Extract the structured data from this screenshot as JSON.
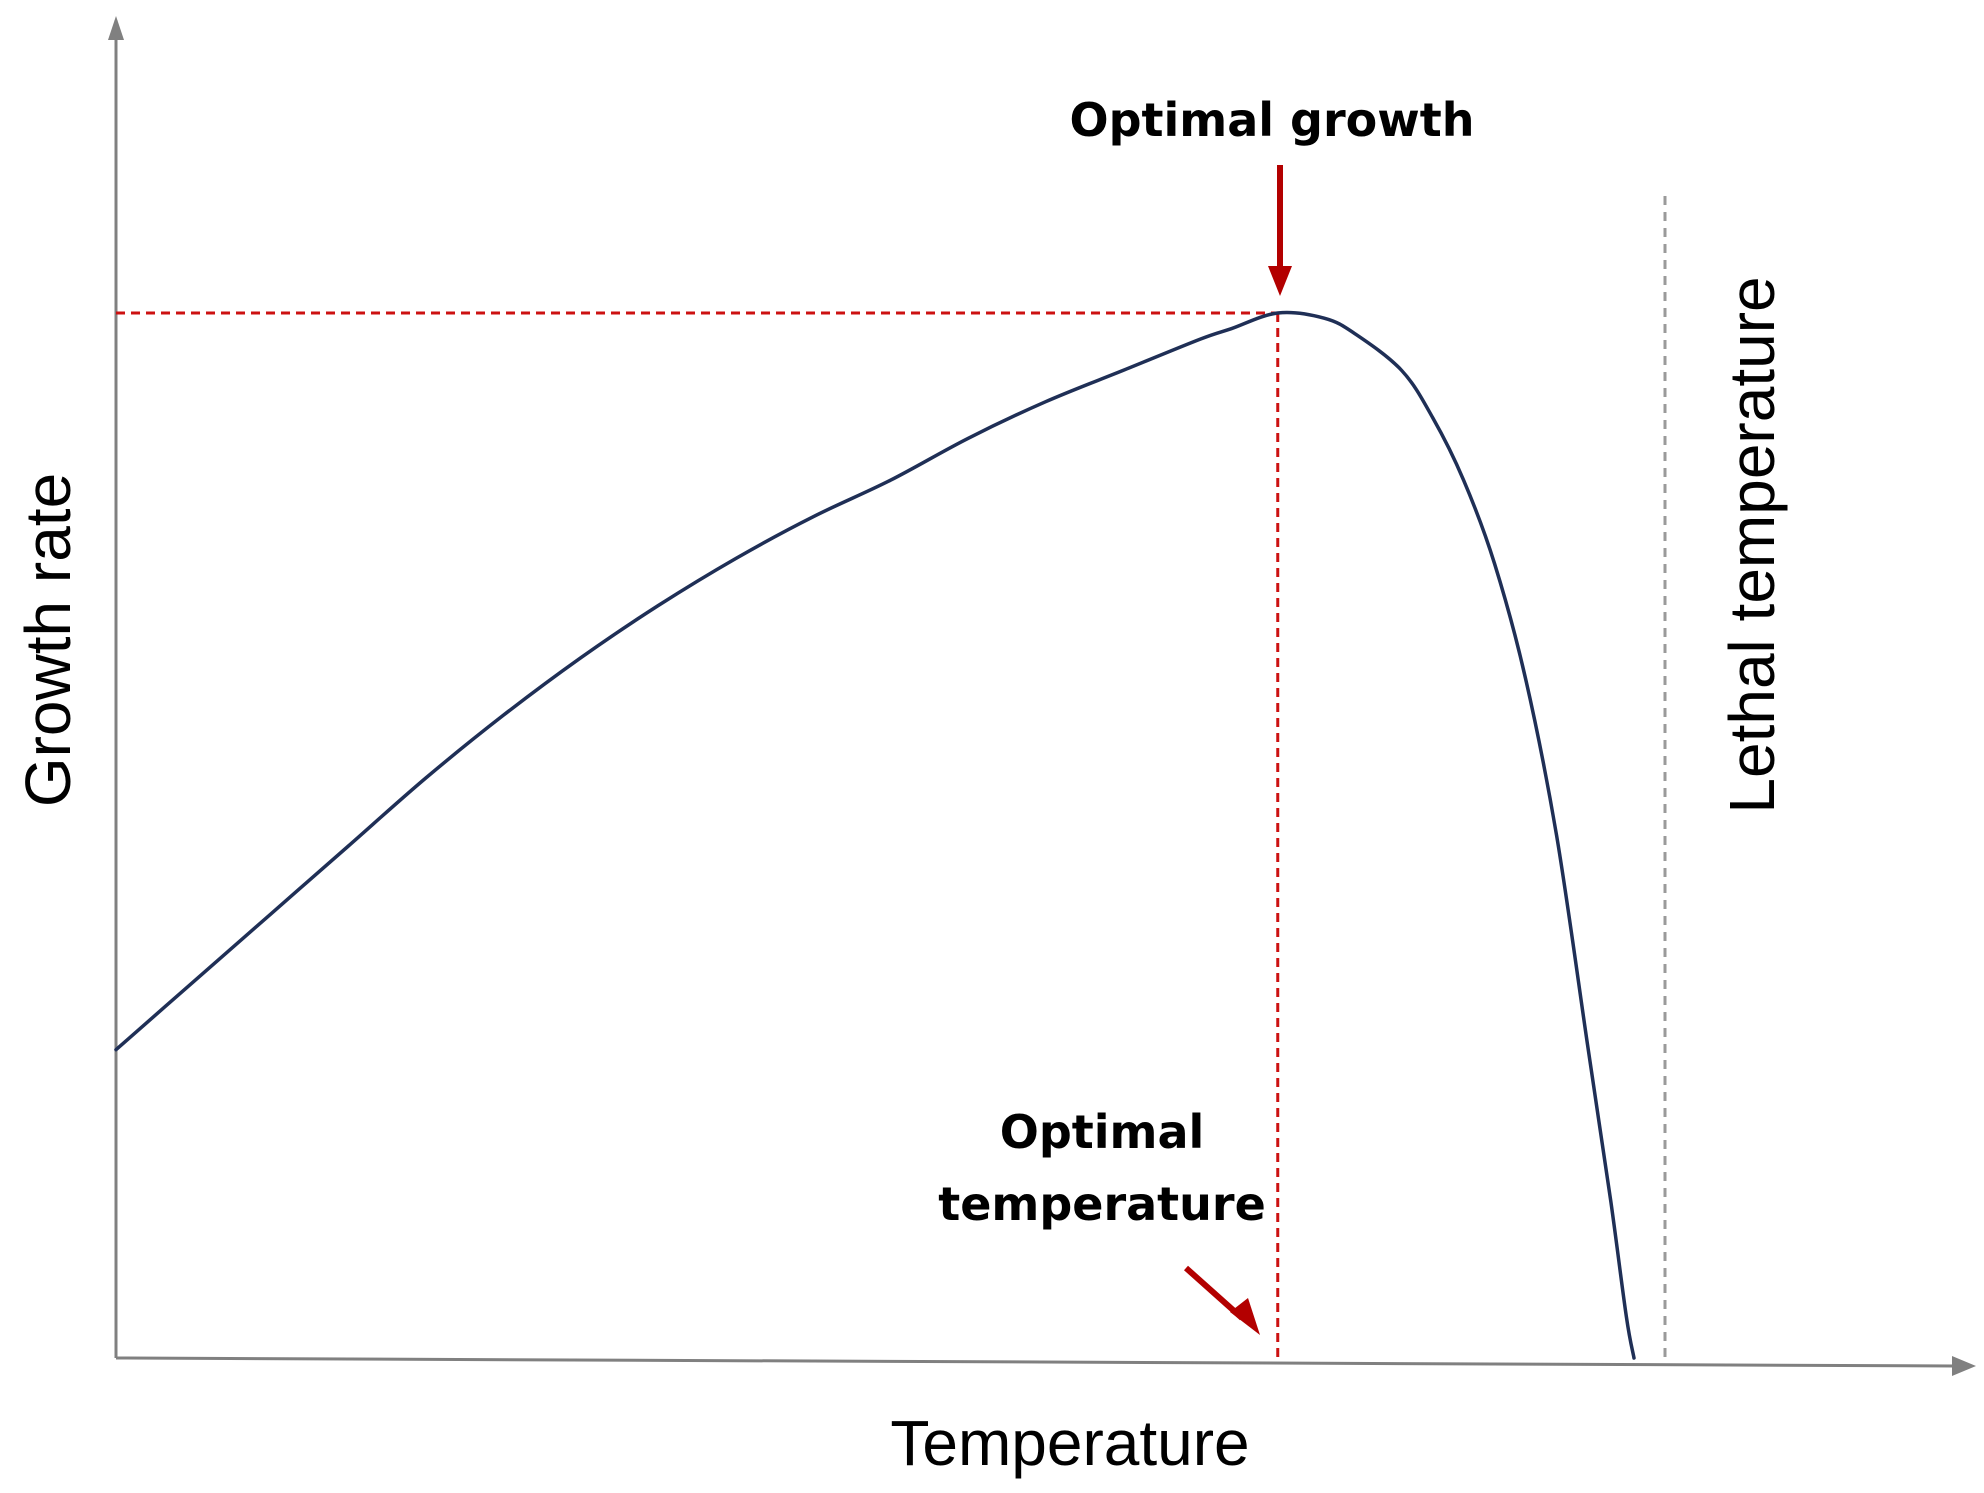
{
  "chart_data": {
    "type": "line",
    "title": "",
    "xlabel": "Temperature",
    "ylabel": "Growth rate",
    "xlim": [
      0,
      100
    ],
    "ylim": [
      0,
      100
    ],
    "ticks_shown": false,
    "grid": false,
    "series": [
      {
        "color": "#1f2f56",
        "x": [
          0,
          5,
          10,
          15,
          20,
          25,
          30,
          35,
          40,
          45,
          50,
          55,
          60,
          65,
          70,
          72,
          75,
          78,
          80,
          83,
          85,
          87,
          89,
          91,
          93,
          95,
          96.5,
          97.5,
          98
        ],
        "y": [
          29.5,
          36,
          42.5,
          49,
          55.5,
          61.5,
          67,
          72,
          76.5,
          80.5,
          84,
          88,
          91.5,
          94.5,
          97.5,
          98.5,
          100,
          99.5,
          98,
          94.5,
          90,
          84,
          76,
          65,
          50,
          30,
          15,
          4,
          0
        ]
      }
    ],
    "reference_lines": {
      "optimal_growth_y": 100,
      "optimal_temperature_x": 75,
      "lethal_temperature_x": 100
    },
    "annotations": {
      "optimal_growth": "Optimal growth",
      "optimal_temperature_line1": "Optimal",
      "optimal_temperature_line2": "temperature",
      "lethal_temperature": "Lethal temperature"
    },
    "colors": {
      "curve": "#1f2f56",
      "reference": "#cc1111",
      "lethal_line": "#9a9a9a",
      "axis": "#808080",
      "arrow": "#b30000"
    }
  }
}
